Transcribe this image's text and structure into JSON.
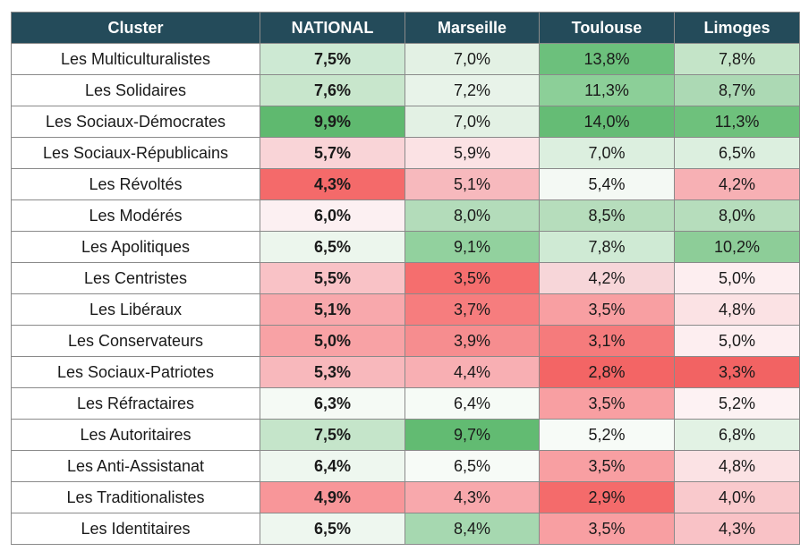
{
  "chart_data": {
    "type": "table",
    "columns": [
      "Cluster",
      "NATIONAL",
      "Marseille",
      "Toulouse",
      "Limoges"
    ],
    "rows": [
      {
        "cluster": "Les Multiculturalistes",
        "values": [
          "7,5%",
          "7,0%",
          "13,8%",
          "7,8%"
        ]
      },
      {
        "cluster": "Les Solidaires",
        "values": [
          "7,6%",
          "7,2%",
          "11,3%",
          "8,7%"
        ]
      },
      {
        "cluster": "Les Sociaux-Démocrates",
        "values": [
          "9,9%",
          "7,0%",
          "14,0%",
          "11,3%"
        ]
      },
      {
        "cluster": "Les Sociaux-Républicains",
        "values": [
          "5,7%",
          "5,9%",
          "7,0%",
          "6,5%"
        ]
      },
      {
        "cluster": "Les Révoltés",
        "values": [
          "4,3%",
          "5,1%",
          "5,4%",
          "4,2%"
        ]
      },
      {
        "cluster": "Les Modérés",
        "values": [
          "6,0%",
          "8,0%",
          "8,5%",
          "8,0%"
        ]
      },
      {
        "cluster": "Les Apolitiques",
        "values": [
          "6,5%",
          "9,1%",
          "7,8%",
          "10,2%"
        ]
      },
      {
        "cluster": "Les Centristes",
        "values": [
          "5,5%",
          "3,5%",
          "4,2%",
          "5,0%"
        ]
      },
      {
        "cluster": "Les Libéraux",
        "values": [
          "5,1%",
          "3,7%",
          "3,5%",
          "4,8%"
        ]
      },
      {
        "cluster": "Les Conservateurs",
        "values": [
          "5,0%",
          "3,9%",
          "3,1%",
          "5,0%"
        ]
      },
      {
        "cluster": "Les Sociaux-Patriotes",
        "values": [
          "5,3%",
          "4,4%",
          "2,8%",
          "3,3%"
        ]
      },
      {
        "cluster": "Les Réfractaires",
        "values": [
          "6,3%",
          "6,4%",
          "3,5%",
          "5,2%"
        ]
      },
      {
        "cluster": "Les Autoritaires",
        "values": [
          "7,5%",
          "9,7%",
          "5,2%",
          "6,8%"
        ]
      },
      {
        "cluster": "Les Anti-Assistanat",
        "values": [
          "6,4%",
          "6,5%",
          "3,5%",
          "4,8%"
        ]
      },
      {
        "cluster": "Les Traditionalistes",
        "values": [
          "4,9%",
          "4,3%",
          "2,9%",
          "4,0%"
        ]
      },
      {
        "cluster": "Les Identitaires",
        "values": [
          "6,5%",
          "8,4%",
          "3,5%",
          "4,3%"
        ]
      }
    ],
    "cell_colors": [
      [
        "#cde9d3",
        "#e3f1e4",
        "#6cc07c",
        "#c4e4c8"
      ],
      [
        "#c8e6cc",
        "#e8f3e9",
        "#8ccf98",
        "#acd9b4"
      ],
      [
        "#5fb96f",
        "#e3f1e4",
        "#65bc75",
        "#6ec17c"
      ],
      [
        "#f9d4d7",
        "#fbe2e4",
        "#dcefdf",
        "#dcefdf"
      ],
      [
        "#f46a6a",
        "#f7b9bd",
        "#f4f9f4",
        "#f7b0b4"
      ],
      [
        "#fcf0f2",
        "#b3dcba",
        "#b6ddbc",
        "#b6ddbc"
      ],
      [
        "#ecf6ed",
        "#92d19e",
        "#cfead4",
        "#8dcd98"
      ],
      [
        "#f9c2c6",
        "#f56e6e",
        "#f7d6d9",
        "#fdeef0"
      ],
      [
        "#f8a8ac",
        "#f67d7e",
        "#f89fa2",
        "#fbe2e4"
      ],
      [
        "#f8a2a5",
        "#f68d8f",
        "#f57b7c",
        "#fdeef0"
      ],
      [
        "#f8b8bc",
        "#f8afb3",
        "#f36565",
        "#f26363"
      ],
      [
        "#f5faf5",
        "#f6fbf6",
        "#f89fa2",
        "#fdf2f3"
      ],
      [
        "#c5e5ca",
        "#62bb72",
        "#f7fbf7",
        "#e2f2e4"
      ],
      [
        "#eef7ef",
        "#f7fbf7",
        "#f89fa2",
        "#fbe2e4"
      ],
      [
        "#f89699",
        "#f8a8ac",
        "#f46b6b",
        "#f9c9cc"
      ],
      [
        "#eef7ef",
        "#a6d8b0",
        "#f89fa2",
        "#f9c2c6"
      ]
    ],
    "colors": {
      "header_bg": "#244b5a",
      "header_text": "#ffffff",
      "border": "#8a8a8a",
      "high": "#5fb96f",
      "low": "#f46565"
    }
  }
}
